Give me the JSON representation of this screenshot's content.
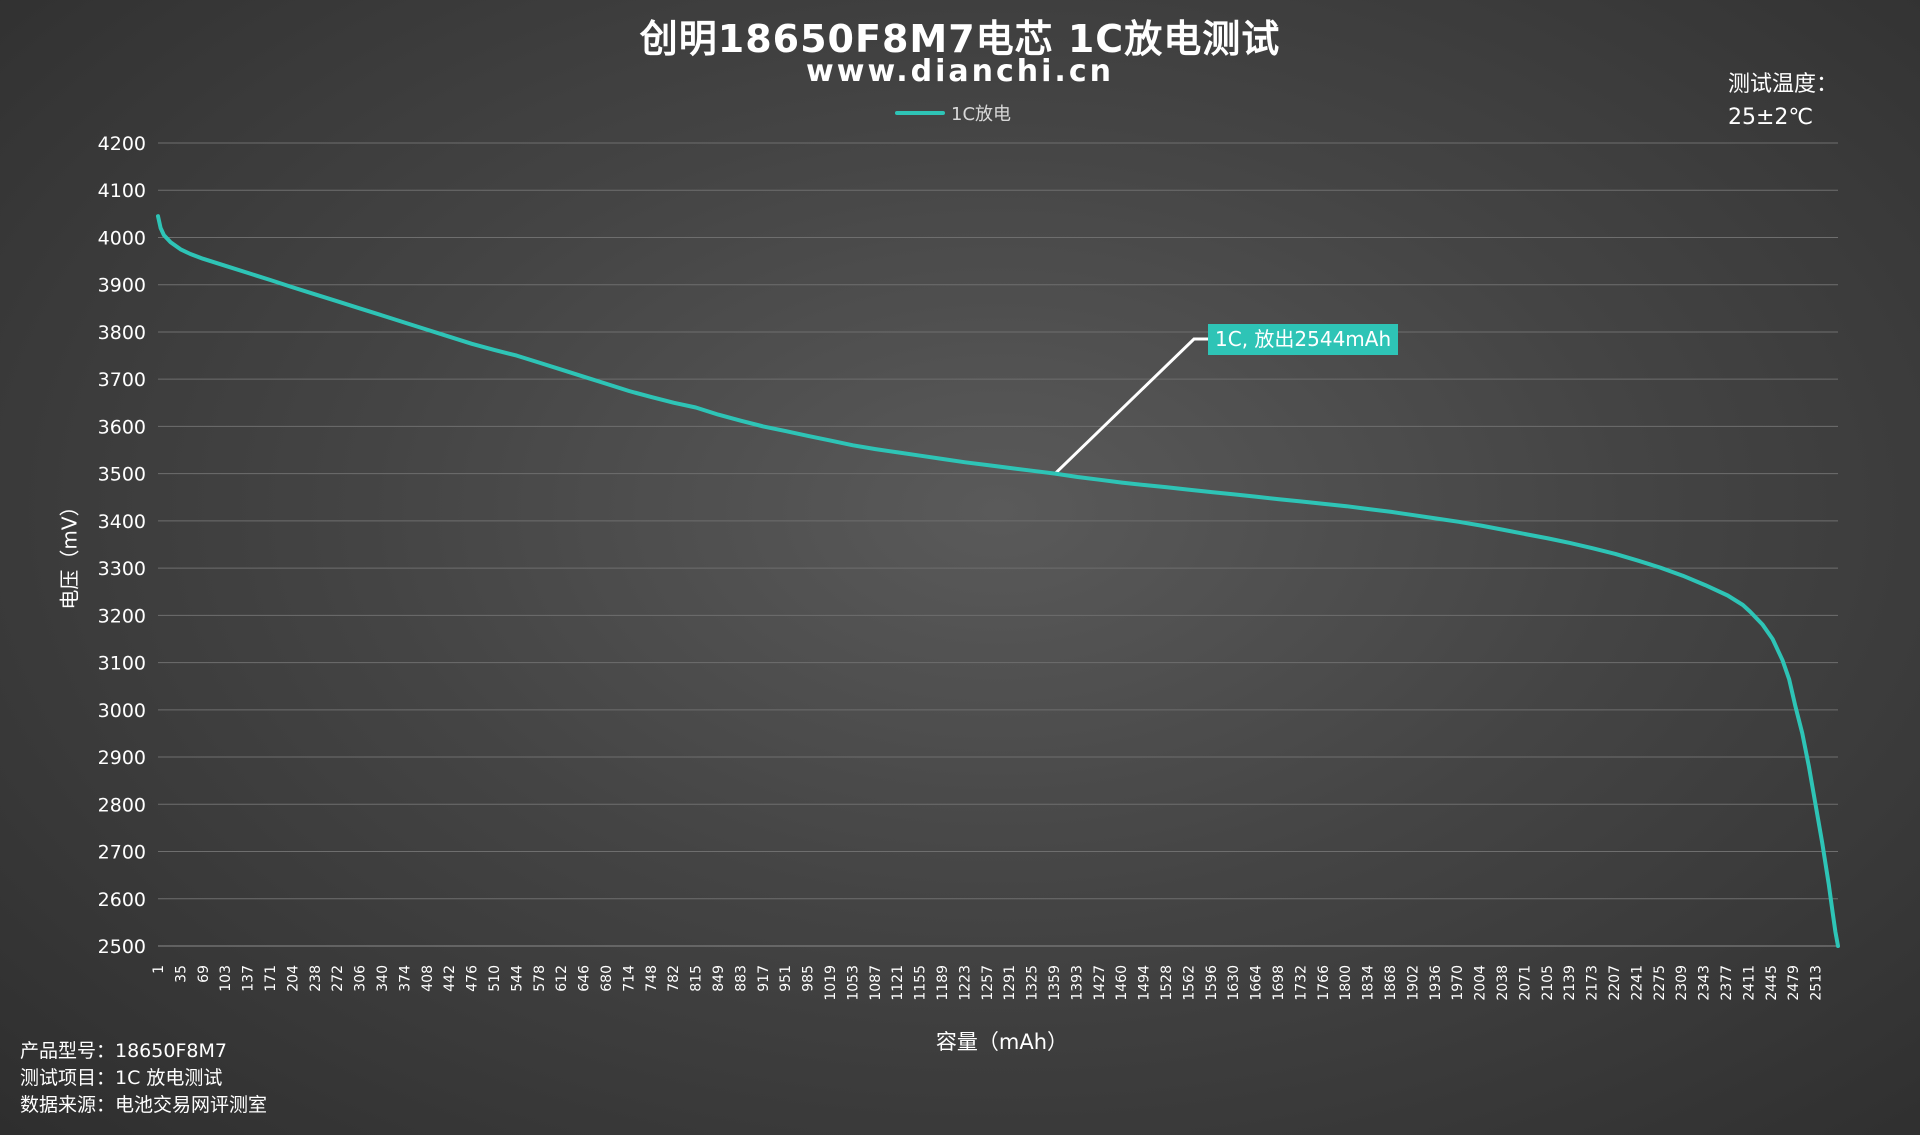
{
  "title": "创明18650F8M7电芯 1C放电测试",
  "subtitle": "www.dianchi.cn",
  "temperature": {
    "label": "测试温度：",
    "value": "25±2℃"
  },
  "info": [
    "产品型号：18650F8M7",
    "测试项目：1C 放电测试",
    "数据来源：电池交易网评测室"
  ],
  "colors": {
    "series": "#2ec4b6",
    "annotation_line": "#ffffff",
    "grid": "#6e6e6e"
  },
  "chart_data": {
    "type": "line",
    "xlabel": "容量（mAh）",
    "ylabel": "电压（mV）",
    "ylim": [
      2500,
      4200
    ],
    "yticks": [
      2500,
      2600,
      2700,
      2800,
      2900,
      3000,
      3100,
      3200,
      3300,
      3400,
      3500,
      3600,
      3700,
      3800,
      3900,
      4000,
      4100,
      4200
    ],
    "xlim": [
      1,
      2544
    ],
    "xticks": [
      1,
      35,
      69,
      103,
      137,
      171,
      204,
      238,
      272,
      306,
      340,
      374,
      408,
      442,
      476,
      510,
      544,
      578,
      612,
      646,
      680,
      714,
      748,
      782,
      815,
      849,
      883,
      917,
      951,
      985,
      1019,
      1053,
      1087,
      1121,
      1155,
      1189,
      1223,
      1257,
      1291,
      1325,
      1359,
      1393,
      1427,
      1460,
      1494,
      1528,
      1562,
      1596,
      1630,
      1664,
      1698,
      1732,
      1766,
      1800,
      1834,
      1868,
      1902,
      1936,
      1970,
      2004,
      2038,
      2071,
      2105,
      2139,
      2173,
      2207,
      2241,
      2275,
      2309,
      2343,
      2377,
      2411,
      2445,
      2479,
      2513
    ],
    "grid": "horizontal",
    "legend_position": "top-center",
    "series": [
      {
        "name": "1C放电",
        "x": [
          1,
          5,
          10,
          20,
          35,
          50,
          69,
          103,
          137,
          171,
          204,
          238,
          272,
          306,
          340,
          374,
          408,
          442,
          476,
          510,
          544,
          578,
          612,
          646,
          680,
          714,
          748,
          782,
          815,
          849,
          883,
          917,
          951,
          985,
          1019,
          1053,
          1087,
          1121,
          1155,
          1189,
          1223,
          1257,
          1291,
          1325,
          1359,
          1393,
          1427,
          1460,
          1494,
          1528,
          1562,
          1596,
          1630,
          1664,
          1698,
          1732,
          1766,
          1800,
          1834,
          1868,
          1902,
          1936,
          1970,
          2004,
          2038,
          2071,
          2105,
          2139,
          2173,
          2207,
          2241,
          2275,
          2309,
          2343,
          2377,
          2400,
          2411,
          2430,
          2445,
          2460,
          2470,
          2479,
          2490,
          2500,
          2510,
          2520,
          2530,
          2536,
          2540,
          2544
        ],
        "y": [
          4045,
          4020,
          4005,
          3990,
          3975,
          3965,
          3955,
          3940,
          3925,
          3910,
          3895,
          3880,
          3865,
          3850,
          3835,
          3820,
          3805,
          3790,
          3775,
          3762,
          3750,
          3735,
          3720,
          3705,
          3690,
          3675,
          3662,
          3650,
          3640,
          3625,
          3612,
          3600,
          3590,
          3580,
          3570,
          3560,
          3552,
          3545,
          3538,
          3531,
          3524,
          3518,
          3512,
          3506,
          3500,
          3493,
          3487,
          3481,
          3476,
          3471,
          3466,
          3461,
          3456,
          3451,
          3446,
          3441,
          3436,
          3431,
          3425,
          3419,
          3412,
          3405,
          3398,
          3390,
          3381,
          3372,
          3363,
          3353,
          3342,
          3330,
          3316,
          3301,
          3284,
          3264,
          3242,
          3222,
          3208,
          3180,
          3150,
          3105,
          3065,
          3010,
          2950,
          2880,
          2800,
          2720,
          2630,
          2570,
          2530,
          2500
        ]
      }
    ],
    "annotation": {
      "text": "1C, 放出2544mAh",
      "x": 1359,
      "y": 3500
    }
  }
}
